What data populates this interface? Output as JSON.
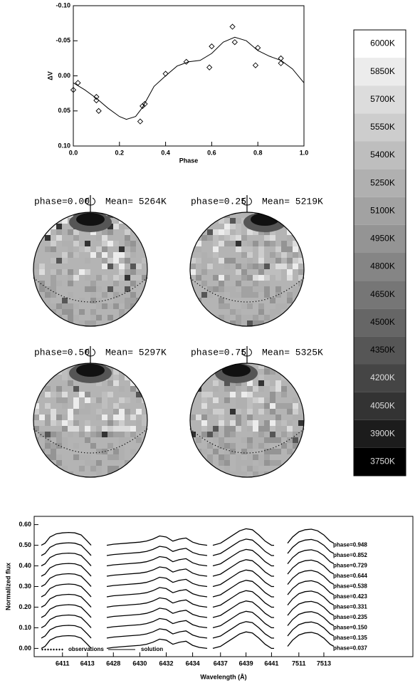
{
  "chart_data": [
    {
      "type": "line",
      "xlabel": "Phase",
      "ylabel": "ΔV",
      "xlim": [
        0,
        1
      ],
      "ylim": [
        0.1,
        -0.1
      ],
      "xticks": [
        {
          "value": 0,
          "label": "0.0"
        },
        {
          "value": 0.2,
          "label": "0.2"
        },
        {
          "value": 0.4,
          "label": "0.4"
        },
        {
          "value": 0.6,
          "label": "0.6"
        },
        {
          "value": 0.8,
          "label": "0.8"
        },
        {
          "value": 1,
          "label": "1.0"
        }
      ],
      "yticks": [
        {
          "value": -0.1,
          "label": "-0.10"
        },
        {
          "value": -0.05,
          "label": "-0.05"
        },
        {
          "value": 0,
          "label": "0.00"
        },
        {
          "value": 0.05,
          "label": "0.05"
        },
        {
          "value": 0.1,
          "label": "0.10"
        }
      ],
      "series": [
        {
          "style": "markers",
          "color": "#000000",
          "x": [
            0.0,
            0.02,
            0.1,
            0.1,
            0.11,
            0.29,
            0.3,
            0.31,
            0.4,
            0.49,
            0.59,
            0.6,
            0.69,
            0.7,
            0.79,
            0.8,
            0.9,
            0.9
          ],
          "values": [
            0.02,
            0.01,
            0.03,
            0.035,
            0.05,
            0.065,
            0.043,
            0.04,
            -0.003,
            -0.02,
            -0.012,
            -0.042,
            -0.07,
            -0.048,
            -0.015,
            -0.04,
            -0.025,
            -0.018
          ]
        },
        {
          "style": "line",
          "color": "#000000",
          "x": [
            0,
            0.05,
            0.1,
            0.15,
            0.2,
            0.23,
            0.27,
            0.3,
            0.35,
            0.4,
            0.45,
            0.5,
            0.55,
            0.6,
            0.65,
            0.7,
            0.75,
            0.8,
            0.85,
            0.9,
            0.95,
            1.0
          ],
          "values": [
            0.01,
            0.02,
            0.032,
            0.046,
            0.058,
            0.062,
            0.058,
            0.045,
            0.015,
            0.0,
            -0.014,
            -0.02,
            -0.022,
            -0.032,
            -0.048,
            -0.055,
            -0.05,
            -0.036,
            -0.028,
            -0.022,
            -0.01,
            0.01
          ]
        }
      ]
    },
    {
      "type": "map",
      "phase_label": "phase=0.00",
      "mean_label": "Mean= 5264K"
    },
    {
      "type": "map",
      "phase_label": "phase=0.25",
      "mean_label": "Mean= 5219K"
    },
    {
      "type": "map",
      "phase_label": "phase=0.50",
      "mean_label": "Mean= 5297K"
    },
    {
      "type": "map",
      "phase_label": "phase=0.75",
      "mean_label": "Mean= 5325K"
    },
    {
      "type": "colorbar",
      "ylim": [
        3675,
        6075
      ],
      "ticks": [
        {
          "value": 6000,
          "label": "6000K"
        },
        {
          "value": 5850,
          "label": "5850K"
        },
        {
          "value": 5700,
          "label": "5700K"
        },
        {
          "value": 5550,
          "label": "5550K"
        },
        {
          "value": 5400,
          "label": "5400K"
        },
        {
          "value": 5250,
          "label": "5250K"
        },
        {
          "value": 5100,
          "label": "5100K"
        },
        {
          "value": 4950,
          "label": "4950K"
        },
        {
          "value": 4800,
          "label": "4800K"
        },
        {
          "value": 4650,
          "label": "4650K"
        },
        {
          "value": 4500,
          "label": "4500K"
        },
        {
          "value": 4350,
          "label": "4350K"
        },
        {
          "value": 4200,
          "label": "4200K"
        },
        {
          "value": 4050,
          "label": "4050K"
        },
        {
          "value": 3900,
          "label": "3900K"
        },
        {
          "value": 3750,
          "label": "3750K"
        }
      ],
      "colors": [
        "#ffffff",
        "#ececec",
        "#dcdcdc",
        "#cdcdcd",
        "#bebebe",
        "#b0b0b0",
        "#a2a2a2",
        "#949494",
        "#858585",
        "#767676",
        "#666666",
        "#565656",
        "#454545",
        "#333333",
        "#1c1c1c",
        "#000000"
      ]
    },
    {
      "type": "spectra",
      "xlabel": "Wavelength (Å)",
      "ylabel": "Normalized flux",
      "ylim": [
        -0.04,
        0.64
      ],
      "yticks": [
        {
          "value": 0,
          "label": "0.00"
        },
        {
          "value": 0.1,
          "label": "0.10"
        },
        {
          "value": 0.2,
          "label": "0.20"
        },
        {
          "value": 0.3,
          "label": "0.30"
        },
        {
          "value": 0.4,
          "label": "0.40"
        },
        {
          "value": 0.5,
          "label": "0.50"
        },
        {
          "value": 0.6,
          "label": "0.60"
        }
      ],
      "phases": [
        "phase=0.037",
        "phase=0.135",
        "phase=0.150",
        "phase=0.235",
        "phase=0.331",
        "phase=0.423",
        "phase=0.538",
        "phase=0.644",
        "phase=0.729",
        "phase=0.852",
        "phase=0.948"
      ],
      "offsets": [
        0.0,
        0.05,
        0.1,
        0.15,
        0.2,
        0.25,
        0.3,
        0.35,
        0.4,
        0.45,
        0.5
      ],
      "legend": [
        "observations",
        "solution"
      ],
      "segments": [
        {
          "xlim": [
            6409.3,
            6413.3
          ],
          "xticks": [
            6411,
            6413
          ],
          "x": [
            6409.3,
            6409.6,
            6410,
            6410.5,
            6411,
            6411.5,
            6412,
            6412.5,
            6413,
            6413.3
          ],
          "depth": [
            0.0,
            0.01,
            0.04,
            0.055,
            0.06,
            0.062,
            0.06,
            0.05,
            0.02,
            0.0
          ]
        },
        {
          "xlim": [
            6427.5,
            6435.1
          ],
          "xticks": [
            6428,
            6430,
            6432,
            6434
          ],
          "x": [
            6427.5,
            6428,
            6429,
            6430,
            6430.5,
            6431,
            6431.5,
            6432,
            6432.5,
            6433,
            6433.5,
            6434,
            6434.5,
            6435.1
          ],
          "depth": [
            0,
            0.005,
            0.01,
            0.015,
            0.02,
            0.03,
            0.045,
            0.04,
            0.02,
            0.03,
            0.035,
            0.015,
            0.005,
            0
          ]
        },
        {
          "xlim": [
            6436.4,
            6441.2
          ],
          "xticks": [
            6437,
            6439,
            6441
          ],
          "x": [
            6436.4,
            6437,
            6437.5,
            6438,
            6438.5,
            6439,
            6439.5,
            6440,
            6440.5,
            6441,
            6441.2
          ],
          "depth": [
            0,
            0.01,
            0.03,
            0.05,
            0.07,
            0.08,
            0.075,
            0.05,
            0.02,
            0.0,
            0.0
          ]
        },
        {
          "xlim": [
            7510.1,
            7513.8
          ],
          "xticks": [
            7511,
            7513
          ],
          "x": [
            7510.1,
            7510.5,
            7511,
            7511.5,
            7512,
            7512.5,
            7513,
            7513.5,
            7513.8
          ],
          "depth": [
            0.01,
            0.04,
            0.065,
            0.075,
            0.078,
            0.07,
            0.05,
            0.02,
            0.01
          ]
        }
      ]
    }
  ]
}
